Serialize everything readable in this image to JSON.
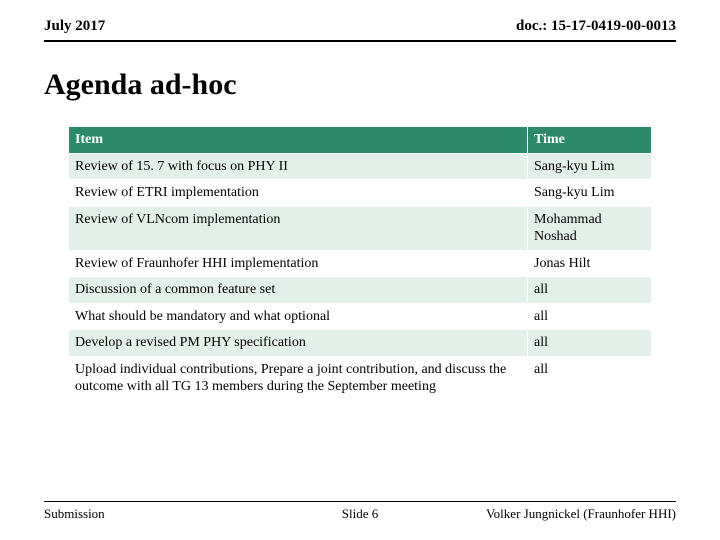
{
  "header": {
    "date": "July 2017",
    "doc": "doc.: 15-17-0419-00-0013"
  },
  "title": "Agenda ad-hoc",
  "table": {
    "header_bg": "#2c8a6b",
    "header_fg": "#ffffff",
    "band_bg": "#e3efe9",
    "plain_bg": "#ffffff",
    "columns": [
      "Item",
      "Time"
    ],
    "rows": [
      {
        "band": true,
        "cells": [
          "Review of 15. 7 with focus on PHY II",
          "Sang-kyu Lim"
        ]
      },
      {
        "band": false,
        "cells": [
          "Review of ETRI implementation",
          "Sang-kyu Lim"
        ]
      },
      {
        "band": true,
        "cells": [
          "Review of VLNcom implementation",
          "Mohammad Noshad"
        ]
      },
      {
        "band": false,
        "cells": [
          "Review of Fraunhofer HHI implementation",
          "Jonas Hilt"
        ]
      },
      {
        "band": true,
        "cells": [
          "Discussion of a common feature set",
          "all"
        ]
      },
      {
        "band": false,
        "cells": [
          "What should be mandatory and what optional",
          "all"
        ]
      },
      {
        "band": true,
        "cells": [
          "Develop a revised PM PHY specification",
          "all"
        ]
      },
      {
        "band": false,
        "cells": [
          "Upload individual contributions, Prepare  a joint contribution, and discuss the outcome with all TG 13 members during the September meeting",
          "all"
        ]
      }
    ]
  },
  "footer": {
    "left": "Submission",
    "mid": "Slide 6",
    "right": "Volker Jungnickel (Fraunhofer HHI)"
  }
}
